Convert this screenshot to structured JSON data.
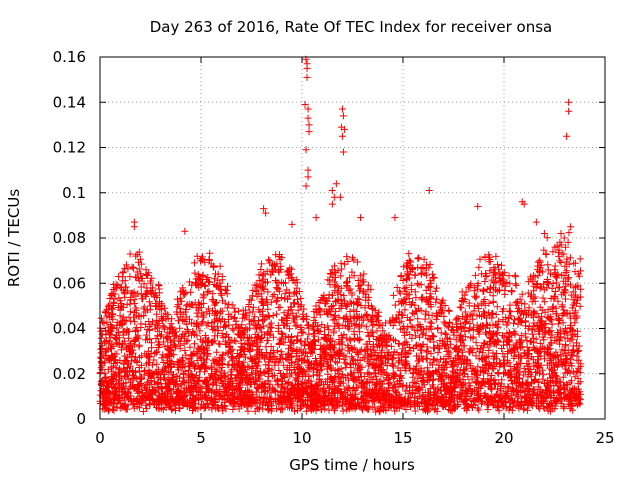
{
  "chart_data": {
    "type": "scatter",
    "title": "Day 263 of 2016, Rate Of TEC Index for receiver onsa",
    "xlabel": "GPS time / hours",
    "ylabel": "ROTI / TECUs",
    "xlim": [
      0,
      25
    ],
    "ylim": [
      0,
      0.16
    ],
    "x_ticks": [
      0,
      5,
      10,
      15,
      20,
      25
    ],
    "x_tick_labels": [
      "0",
      "5",
      "10",
      "15",
      "20",
      "25"
    ],
    "y_ticks": [
      0,
      0.02,
      0.04,
      0.06,
      0.08,
      0.1,
      0.12,
      0.14,
      0.16
    ],
    "y_tick_labels": [
      "0",
      "0.02",
      "0.04",
      "0.06",
      "0.08",
      "0.1",
      "0.12",
      "0.14",
      "0.16"
    ],
    "grid": true,
    "marker": "+",
    "color": "#ff0000",
    "x_data_range": [
      0,
      23.8
    ],
    "typical_range": [
      0.003,
      0.07
    ],
    "series": [
      {
        "name": "ROTI",
        "note": "dense point cloud; outliers listed explicitly",
        "outliers": [
          {
            "x": 10.2,
            "y": 0.159
          },
          {
            "x": 10.25,
            "y": 0.157
          },
          {
            "x": 10.25,
            "y": 0.155
          },
          {
            "x": 10.25,
            "y": 0.151
          },
          {
            "x": 10.15,
            "y": 0.139
          },
          {
            "x": 10.3,
            "y": 0.137
          },
          {
            "x": 10.3,
            "y": 0.133
          },
          {
            "x": 10.35,
            "y": 0.13
          },
          {
            "x": 10.35,
            "y": 0.127
          },
          {
            "x": 10.2,
            "y": 0.119
          },
          {
            "x": 10.3,
            "y": 0.11
          },
          {
            "x": 10.3,
            "y": 0.107
          },
          {
            "x": 10.2,
            "y": 0.103
          },
          {
            "x": 12.0,
            "y": 0.137
          },
          {
            "x": 12.05,
            "y": 0.134
          },
          {
            "x": 11.95,
            "y": 0.129
          },
          {
            "x": 12.1,
            "y": 0.128
          },
          {
            "x": 12.0,
            "y": 0.125
          },
          {
            "x": 12.05,
            "y": 0.118
          },
          {
            "x": 11.7,
            "y": 0.104
          },
          {
            "x": 11.5,
            "y": 0.101
          },
          {
            "x": 11.6,
            "y": 0.098
          },
          {
            "x": 11.9,
            "y": 0.098
          },
          {
            "x": 11.5,
            "y": 0.095
          },
          {
            "x": 23.2,
            "y": 0.14
          },
          {
            "x": 23.2,
            "y": 0.136
          },
          {
            "x": 23.1,
            "y": 0.125
          },
          {
            "x": 16.3,
            "y": 0.101
          },
          {
            "x": 18.7,
            "y": 0.094
          },
          {
            "x": 8.1,
            "y": 0.093
          },
          {
            "x": 8.2,
            "y": 0.091
          },
          {
            "x": 20.9,
            "y": 0.096
          },
          {
            "x": 21.0,
            "y": 0.095
          },
          {
            "x": 14.6,
            "y": 0.089
          },
          {
            "x": 12.9,
            "y": 0.089
          },
          {
            "x": 10.7,
            "y": 0.089
          },
          {
            "x": 1.7,
            "y": 0.087
          },
          {
            "x": 1.7,
            "y": 0.085
          },
          {
            "x": 21.6,
            "y": 0.087
          },
          {
            "x": 23.3,
            "y": 0.085
          },
          {
            "x": 4.2,
            "y": 0.083
          },
          {
            "x": 9.5,
            "y": 0.086
          },
          {
            "x": 22.0,
            "y": 0.082
          }
        ]
      }
    ]
  }
}
